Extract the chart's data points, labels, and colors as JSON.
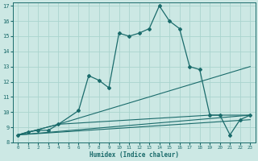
{
  "xlabel": "Humidex (Indice chaleur)",
  "xlim": [
    -0.5,
    23.5
  ],
  "ylim": [
    8,
    17.2
  ],
  "yticks": [
    8,
    9,
    10,
    11,
    12,
    13,
    14,
    15,
    16,
    17
  ],
  "xticks": [
    0,
    1,
    2,
    3,
    4,
    5,
    6,
    7,
    8,
    9,
    10,
    11,
    12,
    13,
    14,
    15,
    16,
    17,
    18,
    19,
    20,
    21,
    22,
    23
  ],
  "bg_color": "#cce8e4",
  "line_color": "#1a6b6b",
  "grid_color": "#aad4ce",
  "main_x": [
    0,
    1,
    2,
    3,
    4,
    6,
    7,
    8,
    9,
    10,
    11,
    12,
    13,
    14,
    15,
    16,
    17,
    18,
    19,
    20,
    21,
    22,
    23
  ],
  "main_y": [
    8.5,
    8.7,
    8.8,
    8.8,
    9.2,
    10.1,
    12.4,
    12.1,
    11.6,
    15.2,
    15.0,
    15.2,
    15.5,
    17.0,
    16.0,
    15.5,
    13.0,
    12.8,
    9.8,
    9.8,
    8.5,
    9.5,
    9.8
  ],
  "line2_x": [
    0,
    23
  ],
  "line2_y": [
    8.5,
    9.8
  ],
  "line3_x": [
    0,
    23
  ],
  "line3_y": [
    8.5,
    9.5
  ],
  "line4_x": [
    0,
    4,
    23
  ],
  "line4_y": [
    8.5,
    9.2,
    13.0
  ],
  "line5_x": [
    0,
    4,
    19,
    23
  ],
  "line5_y": [
    8.5,
    9.2,
    9.8,
    9.8
  ]
}
